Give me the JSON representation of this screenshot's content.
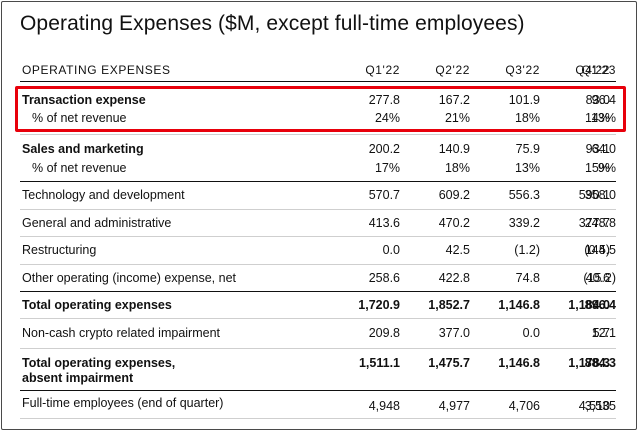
{
  "title": "Operating Expenses ($M, except full-time employees)",
  "header": {
    "label": "OPERATING EXPENSES",
    "quarters": [
      "Q1'22",
      "Q2'22",
      "Q3'22",
      "Q4'22",
      "Q1'23"
    ]
  },
  "rows": [
    {
      "label": "Transaction expense",
      "values": [
        "277.8",
        "167.2",
        "101.9",
        "83.0",
        "96.4"
      ],
      "sub_label": "% of net revenue",
      "sub_values": [
        "24%",
        "21%",
        "18%",
        "14%",
        "13%"
      ]
    },
    {
      "label": "Sales and marketing",
      "values": [
        "200.2",
        "140.9",
        "75.9",
        "93.1",
        "64.0"
      ],
      "sub_label": "% of net revenue",
      "sub_values": [
        "17%",
        "18%",
        "13%",
        "15%",
        "9%"
      ]
    },
    {
      "label": "Technology and development",
      "values": [
        "570.7",
        "609.2",
        "556.3",
        "590.1",
        "358.0"
      ]
    },
    {
      "label": "General and administrative",
      "values": [
        "413.6",
        "470.2",
        "339.2",
        "377.7",
        "248.8"
      ]
    },
    {
      "label": "Restructuring",
      "values": [
        "0.0",
        "42.5",
        "(1.2)",
        "(0.5)",
        "144.5"
      ]
    },
    {
      "label": "Other operating (income) expense, net",
      "values": [
        "258.6",
        "422.8",
        "74.8",
        "40.6",
        "(15.2)"
      ]
    },
    {
      "label": "Total operating expenses",
      "values": [
        "1,720.9",
        "1,852.7",
        "1,146.8",
        "1,184.0",
        "896.4"
      ]
    },
    {
      "label": "Non-cash crypto related impairment",
      "values": [
        "209.8",
        "377.0",
        "0.0",
        "5.7",
        "12.1"
      ]
    },
    {
      "label_line1": "Total operating expenses,",
      "label_line2": "absent impairment",
      "values": [
        "1,511.1",
        "1,475.7",
        "1,146.8",
        "1,178.3",
        "884.3"
      ]
    },
    {
      "label": "Full-time employees (end of quarter)",
      "values": [
        "4,948",
        "4,977",
        "4,706",
        "4,510",
        "3,535"
      ]
    }
  ]
}
